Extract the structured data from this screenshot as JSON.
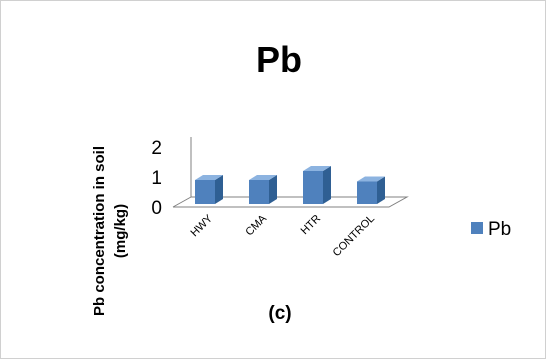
{
  "chart_data": {
    "type": "bar",
    "title": "Pb",
    "ylabel": "Pb  concentration in soil (mg/kg)",
    "ylabel_lines": [
      "Pb  concentration in soil",
      "(mg/kg)"
    ],
    "xlabel": "",
    "categories": [
      "HWY",
      "CMA",
      "HTR",
      "CONTROL"
    ],
    "series": [
      {
        "name": "Pb",
        "values": [
          0.8,
          0.8,
          1.1,
          0.75
        ]
      }
    ],
    "ylim": [
      0,
      2
    ],
    "yticks": [
      "0",
      "1",
      "2"
    ],
    "grid": false,
    "legend_position": "right",
    "annotation": "(c)",
    "style": "3d-column",
    "colors": {
      "bar_front": "#4F81BD",
      "bar_side": "#2F5F93",
      "bar_top": "#8CB3E0",
      "axis": "#808080"
    }
  }
}
